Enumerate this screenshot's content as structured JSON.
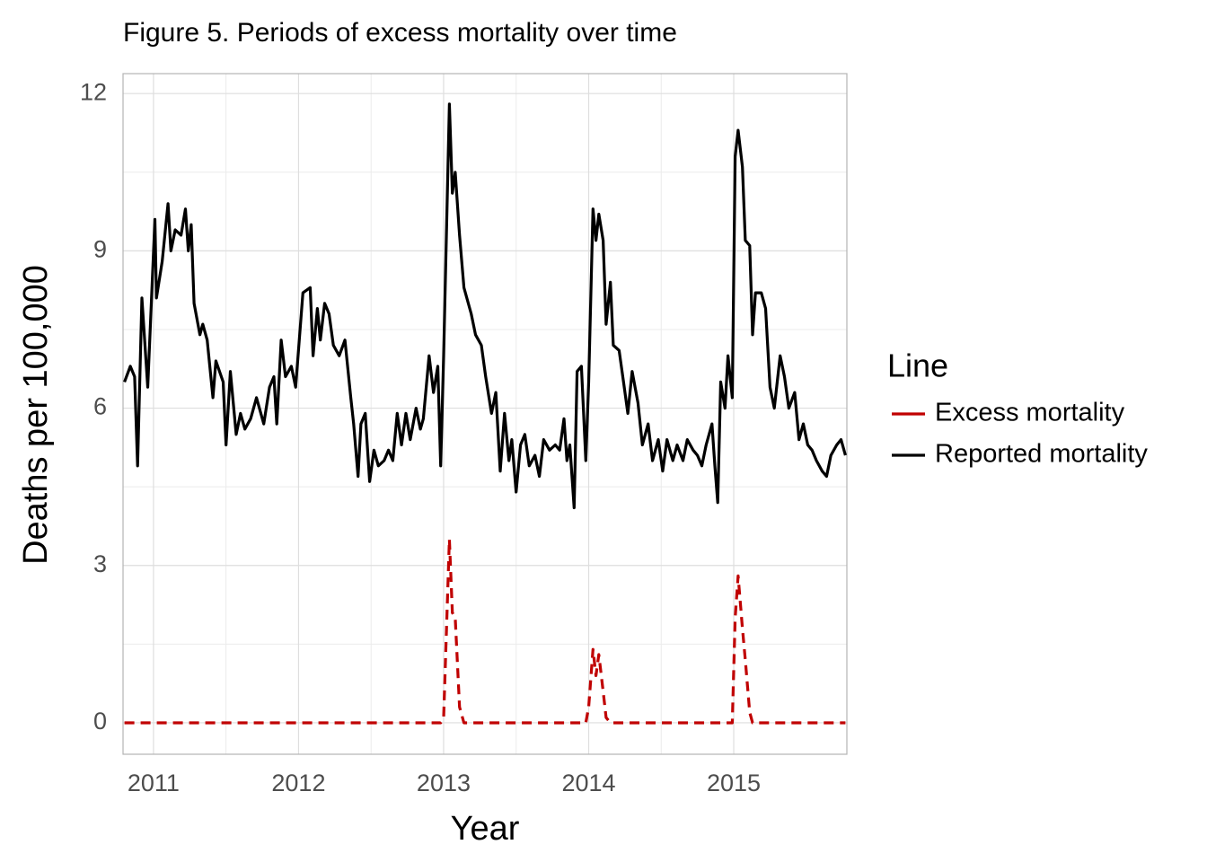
{
  "chart_data": {
    "type": "line",
    "title": "Figure 5. Periods of excess mortality over time",
    "x_label": "Year",
    "y_label": "Deaths per 100,000",
    "legend_title": "Line",
    "legend_position": "right",
    "grid": true,
    "x": [
      2010.8,
      2010.84,
      2010.87,
      2010.89,
      2010.92,
      2010.96,
      2011.01,
      2011.02,
      2011.06,
      2011.1,
      2011.12,
      2011.15,
      2011.19,
      2011.22,
      2011.24,
      2011.26,
      2011.28,
      2011.32,
      2011.34,
      2011.37,
      2011.41,
      2011.43,
      2011.48,
      2011.5,
      2011.53,
      2011.57,
      2011.6,
      2011.63,
      2011.67,
      2011.71,
      2011.76,
      2011.8,
      2011.83,
      2011.85,
      2011.88,
      2011.91,
      2011.95,
      2011.98,
      2012.03,
      2012.08,
      2012.1,
      2012.13,
      2012.15,
      2012.18,
      2012.21,
      2012.24,
      2012.28,
      2012.32,
      2012.36,
      2012.38,
      2012.41,
      2012.43,
      2012.46,
      2012.49,
      2012.52,
      2012.55,
      2012.59,
      2012.62,
      2012.65,
      2012.68,
      2012.71,
      2012.74,
      2012.77,
      2012.81,
      2012.84,
      2012.86,
      2012.9,
      2012.93,
      2012.96,
      2012.98,
      2013.0,
      2013.04,
      2013.06,
      2013.08,
      2013.11,
      2013.14,
      2013.19,
      2013.22,
      2013.26,
      2013.29,
      2013.33,
      2013.36,
      2013.39,
      2013.42,
      2013.45,
      2013.47,
      2013.5,
      2013.53,
      2013.56,
      2013.59,
      2013.63,
      2013.66,
      2013.69,
      2013.73,
      2013.77,
      2013.8,
      2013.83,
      2013.85,
      2013.87,
      2013.9,
      2013.92,
      2013.95,
      2013.98,
      2014.0,
      2014.03,
      2014.05,
      2014.07,
      2014.1,
      2014.12,
      2014.15,
      2014.17,
      2014.21,
      2014.24,
      2014.27,
      2014.3,
      2014.34,
      2014.37,
      2014.41,
      2014.44,
      2014.48,
      2014.51,
      2014.54,
      2014.58,
      2014.61,
      2014.65,
      2014.68,
      2014.72,
      2014.75,
      2014.78,
      2014.81,
      2014.85,
      2014.87,
      2014.89,
      2014.91,
      2014.94,
      2014.96,
      2014.99,
      2015.01,
      2015.03,
      2015.06,
      2015.08,
      2015.11,
      2015.13,
      2015.15,
      2015.19,
      2015.22,
      2015.25,
      2015.28,
      2015.32,
      2015.35,
      2015.38,
      2015.42,
      2015.45,
      2015.48,
      2015.51,
      2015.54,
      2015.57,
      2015.61,
      2015.64,
      2015.67,
      2015.71,
      2015.74,
      2015.77
    ],
    "series": [
      {
        "name": "Excess mortality",
        "color": "#c00000",
        "linestyle": "dashed",
        "values": [
          0,
          0,
          0,
          0,
          0,
          0,
          0,
          0,
          0,
          0,
          0,
          0,
          0,
          0,
          0,
          0,
          0,
          0,
          0,
          0,
          0,
          0,
          0,
          0,
          0,
          0,
          0,
          0,
          0,
          0,
          0,
          0,
          0,
          0,
          0,
          0,
          0,
          0,
          0,
          0,
          0,
          0,
          0,
          0,
          0,
          0,
          0,
          0,
          0,
          0,
          0,
          0,
          0,
          0,
          0,
          0,
          0,
          0,
          0,
          0,
          0,
          0,
          0,
          0,
          0,
          0,
          0,
          0,
          0,
          0,
          0.1,
          3.5,
          2.1,
          2.0,
          0.3,
          0,
          0,
          0,
          0,
          0,
          0,
          0,
          0,
          0,
          0,
          0,
          0,
          0,
          0,
          0,
          0,
          0,
          0,
          0,
          0,
          0,
          0,
          0,
          0,
          0,
          0,
          0,
          0,
          0.3,
          1.4,
          0.9,
          1.3,
          0.6,
          0.1,
          0,
          0,
          0,
          0,
          0,
          0,
          0,
          0,
          0,
          0,
          0,
          0,
          0,
          0,
          0,
          0,
          0,
          0,
          0,
          0,
          0,
          0,
          0,
          0,
          0,
          0,
          0,
          0,
          2.0,
          2.8,
          1.8,
          1.2,
          0.2,
          0,
          0,
          0,
          0,
          0,
          0,
          0,
          0,
          0,
          0,
          0,
          0,
          0,
          0,
          0,
          0,
          0,
          0,
          0,
          0,
          0
        ]
      },
      {
        "name": "Reported mortality",
        "color": "#000000",
        "linestyle": "solid",
        "values": [
          6.5,
          6.8,
          6.6,
          4.9,
          8.1,
          6.4,
          9.6,
          8.1,
          8.8,
          9.9,
          9.0,
          9.4,
          9.3,
          9.8,
          9.0,
          9.5,
          8.0,
          7.4,
          7.6,
          7.3,
          6.2,
          6.9,
          6.5,
          5.3,
          6.7,
          5.5,
          5.9,
          5.6,
          5.8,
          6.2,
          5.7,
          6.4,
          6.6,
          5.7,
          7.3,
          6.6,
          6.8,
          6.4,
          8.2,
          8.3,
          7.0,
          7.9,
          7.3,
          8.0,
          7.8,
          7.2,
          7.0,
          7.3,
          6.2,
          5.7,
          4.7,
          5.7,
          5.9,
          4.6,
          5.2,
          4.9,
          5.0,
          5.2,
          5.0,
          5.9,
          5.3,
          5.9,
          5.4,
          6.0,
          5.6,
          5.8,
          7.0,
          6.3,
          6.8,
          4.9,
          7.0,
          11.8,
          10.1,
          10.5,
          9.3,
          8.3,
          7.8,
          7.4,
          7.2,
          6.6,
          5.9,
          6.3,
          4.8,
          5.9,
          5.0,
          5.4,
          4.4,
          5.3,
          5.5,
          4.9,
          5.1,
          4.7,
          5.4,
          5.2,
          5.3,
          5.2,
          5.8,
          5.0,
          5.3,
          4.1,
          6.7,
          6.8,
          5.0,
          6.5,
          9.8,
          9.2,
          9.7,
          9.2,
          7.6,
          8.4,
          7.2,
          7.1,
          6.5,
          5.9,
          6.7,
          6.1,
          5.3,
          5.7,
          5.0,
          5.4,
          4.8,
          5.4,
          5.0,
          5.3,
          5.0,
          5.4,
          5.2,
          5.1,
          4.9,
          5.3,
          5.7,
          4.9,
          4.2,
          6.5,
          6.0,
          7.0,
          6.2,
          10.8,
          11.3,
          10.6,
          9.2,
          9.1,
          7.4,
          8.2,
          8.2,
          7.9,
          6.4,
          6.0,
          7.0,
          6.6,
          6.0,
          6.3,
          5.4,
          5.7,
          5.3,
          5.2,
          5.0,
          4.8,
          4.7,
          5.1,
          5.3,
          5.4,
          5.1
        ]
      }
    ],
    "xlim": [
      2010.79,
      2015.78
    ],
    "xticks": [
      2011,
      2012,
      2013,
      2014,
      2015
    ],
    "ylim": [
      -0.6,
      12.38
    ],
    "yticks": [
      0,
      3,
      6,
      9,
      12
    ]
  }
}
